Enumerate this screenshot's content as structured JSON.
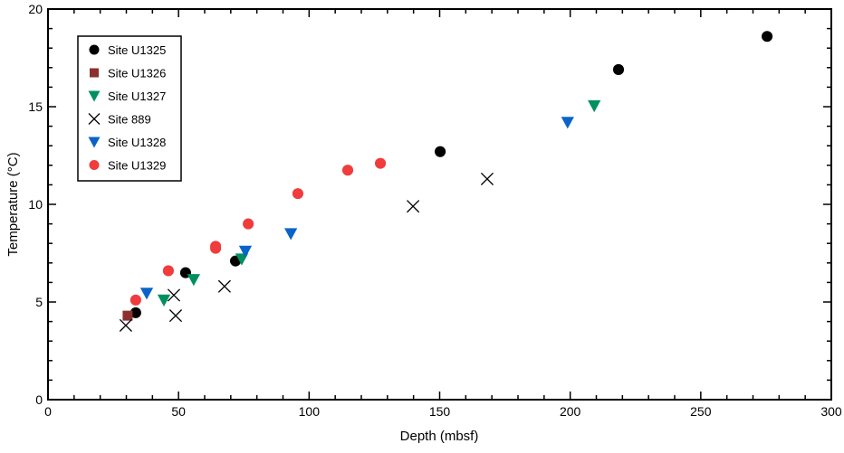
{
  "chart_data": {
    "type": "scatter",
    "title": "",
    "xlabel": "Depth (mbsf)",
    "ylabel": "Temperature (°C)",
    "xlim": [
      0,
      300
    ],
    "ylim": [
      0,
      20
    ],
    "xticks": [
      0,
      50,
      100,
      150,
      200,
      250,
      300
    ],
    "yticks": [
      0,
      5,
      10,
      15,
      20
    ],
    "grid": false,
    "legend_position": "top-left",
    "series": [
      {
        "name": "Site U1325",
        "marker": "circle",
        "color": "#000000",
        "points": [
          [
            33.6,
            4.45
          ],
          [
            52.7,
            6.5
          ],
          [
            71.8,
            7.1
          ],
          [
            150.2,
            12.7
          ],
          [
            218.5,
            16.9
          ],
          [
            275.4,
            18.6
          ]
        ]
      },
      {
        "name": "Site U1326",
        "marker": "square",
        "color": "#8b3030",
        "points": [
          [
            30.5,
            4.3
          ]
        ]
      },
      {
        "name": "Site U1327",
        "marker": "triangle-down",
        "color": "#009060",
        "points": [
          [
            44.4,
            5.1
          ],
          [
            55.8,
            6.15
          ],
          [
            74.2,
            7.2
          ],
          [
            209.2,
            15.05
          ]
        ]
      },
      {
        "name": "Site 889",
        "marker": "x",
        "color": "#000000",
        "points": [
          [
            29.8,
            3.8
          ],
          [
            48.2,
            5.35
          ],
          [
            48.9,
            4.3
          ],
          [
            67.6,
            5.8
          ],
          [
            139.8,
            9.9
          ],
          [
            168.2,
            11.3
          ]
        ]
      },
      {
        "name": "Site U1328",
        "marker": "triangle-down",
        "color": "#0a64c8",
        "points": [
          [
            37.8,
            5.45
          ],
          [
            75.6,
            7.6
          ],
          [
            93.0,
            8.5
          ],
          [
            199.0,
            14.2
          ]
        ]
      },
      {
        "name": "Site U1329",
        "marker": "circle",
        "color": "#f03c3c",
        "points": [
          [
            33.6,
            5.1
          ],
          [
            46.1,
            6.6
          ],
          [
            64.2,
            7.85
          ],
          [
            64.2,
            7.75
          ],
          [
            76.7,
            9.0
          ],
          [
            95.7,
            10.55
          ],
          [
            114.8,
            11.75
          ],
          [
            127.3,
            12.1
          ]
        ]
      }
    ]
  }
}
